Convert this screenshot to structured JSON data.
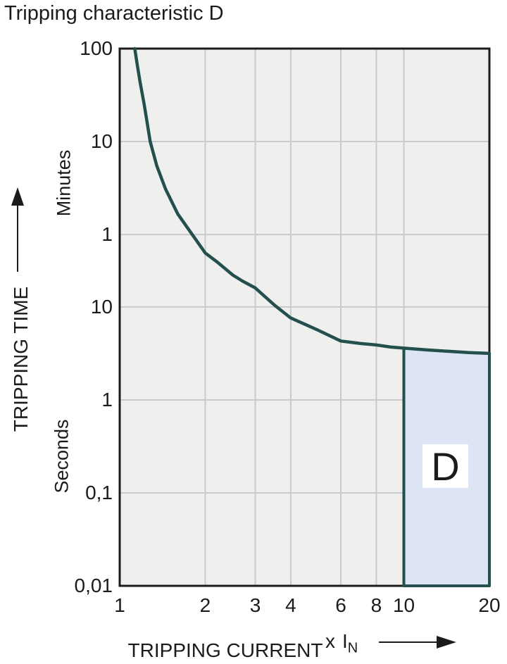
{
  "title": "Tripping characteristic D",
  "colors": {
    "curve": "#234f4d",
    "region_fill": "#dde4f3",
    "plot_background": "#efefee",
    "gridline": "#c9cacd",
    "plot_border": "#1b1b19",
    "text": "#1b1b19"
  },
  "y_axis": {
    "label": "TRIPPING TIME",
    "unit_upper": "Minutes",
    "unit_lower": "Seconds",
    "ticks": [
      {
        "label": "100",
        "seconds": 6000
      },
      {
        "label": "10",
        "seconds": 600
      },
      {
        "label": "1",
        "seconds": 60
      },
      {
        "label": "10",
        "seconds": 10
      },
      {
        "label": "1",
        "seconds": 1
      },
      {
        "label": "0,1",
        "seconds": 0.1
      },
      {
        "label": "0,01",
        "seconds": 0.01
      }
    ]
  },
  "x_axis": {
    "label": "TRIPPING CURRENT",
    "multiplier_x": "x",
    "multiplier_base": "I",
    "multiplier_subscript": "N",
    "ticks": [
      {
        "label": "1",
        "value": 1
      },
      {
        "label": "2",
        "value": 2
      },
      {
        "label": "3",
        "value": 3
      },
      {
        "label": "4",
        "value": 4
      },
      {
        "label": "6",
        "value": 6
      },
      {
        "label": "8",
        "value": 8
      },
      {
        "label": "10",
        "value": 10
      },
      {
        "label": "20",
        "value": 20
      }
    ]
  },
  "chart_data": {
    "type": "line",
    "title": "Tripping characteristic D",
    "xlabel": "TRIPPING CURRENT x IN",
    "ylabel": "TRIPPING TIME",
    "x_scale": "log",
    "y_scale": "log",
    "x_range": [
      1,
      20
    ],
    "y_range_seconds": [
      0.01,
      6000
    ],
    "grid": true,
    "series": [
      {
        "name": "D tripping characteristic curve",
        "points_x_multiple_of_In_t_seconds": [
          [
            1.13,
            6000
          ],
          [
            1.15,
            4200
          ],
          [
            1.18,
            2600
          ],
          [
            1.22,
            1500
          ],
          [
            1.28,
            600
          ],
          [
            1.35,
            330
          ],
          [
            1.45,
            185
          ],
          [
            1.6,
            100
          ],
          [
            1.8,
            60
          ],
          [
            2.0,
            38
          ],
          [
            2.2,
            30.5
          ],
          [
            2.5,
            22
          ],
          [
            2.7,
            19
          ],
          [
            3.0,
            16
          ],
          [
            3.5,
            10.5
          ],
          [
            4.0,
            7.6
          ],
          [
            5.0,
            5.6
          ],
          [
            6.0,
            4.3
          ],
          [
            7.0,
            4.05
          ],
          [
            8.0,
            3.9
          ],
          [
            9.0,
            3.7
          ],
          [
            10.0,
            3.6
          ],
          [
            12.0,
            3.45
          ],
          [
            15.0,
            3.3
          ],
          [
            17.0,
            3.22
          ],
          [
            20.0,
            3.16
          ]
        ]
      }
    ],
    "region": {
      "label": "D",
      "x_from_multiple_of_In": 10,
      "x_to_multiple_of_In": 20,
      "t_bottom_seconds": 0.01,
      "top_boundary": "curve"
    }
  }
}
